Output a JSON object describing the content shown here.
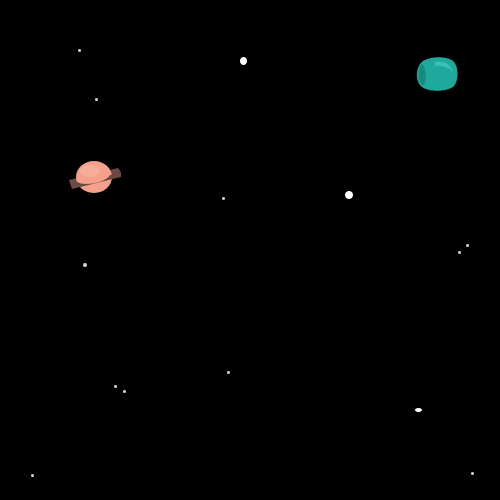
{
  "scene": {
    "background_color": "#000000",
    "planets": [
      {
        "name": "ringed-planet",
        "body_color": "#f4a08a",
        "body_highlight": "#f7b39f",
        "ring_color": "#6b4a44"
      },
      {
        "name": "teal-planet",
        "body_color": "#1fa89c",
        "body_highlight": "#3cc8bc",
        "shade_color": "#178a80"
      }
    ],
    "star_count": 19,
    "star_color": "#ffffff"
  }
}
